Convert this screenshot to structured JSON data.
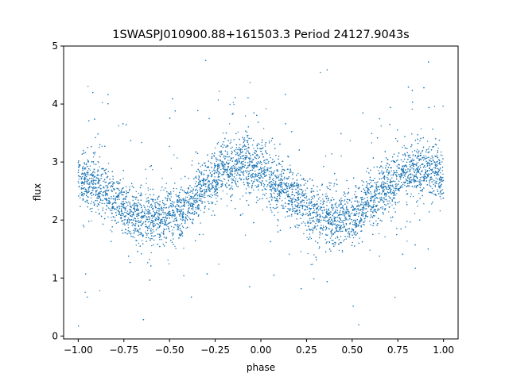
{
  "chart_data": {
    "type": "scatter",
    "title": "1SWASPJ010900.88+161503.3 Period 24127.9043s",
    "xlabel": "phase",
    "ylabel": "flux",
    "xlim": [
      -1.08,
      1.08
    ],
    "ylim": [
      -0.05,
      5.0
    ],
    "x_ticks": [
      -1.0,
      -0.75,
      -0.5,
      -0.25,
      0.0,
      0.25,
      0.5,
      0.75,
      1.0
    ],
    "x_tick_labels": [
      "−1.00",
      "−0.75",
      "−0.50",
      "−0.25",
      "0.00",
      "0.25",
      "0.50",
      "0.75",
      "1.00"
    ],
    "y_ticks": [
      0,
      1,
      2,
      3,
      4,
      5
    ],
    "y_tick_labels": [
      "0",
      "1",
      "2",
      "3",
      "4",
      "5"
    ],
    "grid": false,
    "legend": "none",
    "marker_color": "#1f77b4",
    "series": [
      {
        "phase": [
          -1.0,
          -0.9,
          -0.8,
          -0.7,
          -0.6,
          -0.5,
          -0.4,
          -0.3,
          -0.2,
          -0.1,
          0.0,
          0.1,
          0.2,
          0.3,
          0.4,
          0.5,
          0.6,
          0.7,
          0.8,
          0.9,
          1.0
        ],
        "flux_center": [
          2.75,
          2.6,
          2.35,
          2.12,
          2.02,
          2.05,
          2.25,
          2.6,
          2.9,
          2.98,
          2.85,
          2.6,
          2.35,
          2.12,
          2.0,
          2.05,
          2.3,
          2.6,
          2.85,
          2.9,
          2.75
        ],
        "band_half_width": 0.45,
        "outlier_range": [
          0.15,
          4.75
        ]
      }
    ]
  }
}
